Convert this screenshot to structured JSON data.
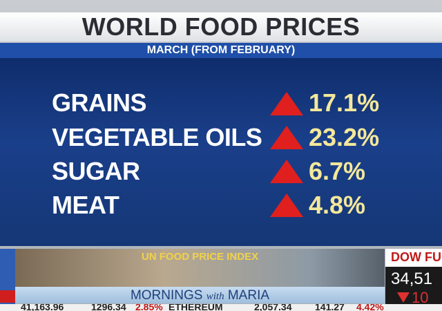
{
  "header": {
    "title": "WORLD FOOD PRICES",
    "subtitle": "MARCH (FROM FEBRUARY)"
  },
  "table": {
    "rows": [
      [
        "GRAINS",
        "17.1%"
      ],
      [
        "VEGETABLE OILS",
        "23.2%"
      ],
      [
        "SUGAR",
        "6.7%"
      ],
      [
        "MEAT",
        "4.8%"
      ]
    ]
  },
  "lower_third": {
    "topic": "UN FOOD PRICE INDEX",
    "show": [
      "MORNINGS",
      "with",
      "MARIA"
    ]
  },
  "market_box": {
    "label": "DOW FU",
    "value": "34,51",
    "change": "10"
  },
  "ticker": [
    "41,163.96",
    "1296.34",
    "2.85%",
    "ETHEREUM",
    "2,057.34",
    "141.27",
    "4.42%"
  ]
}
